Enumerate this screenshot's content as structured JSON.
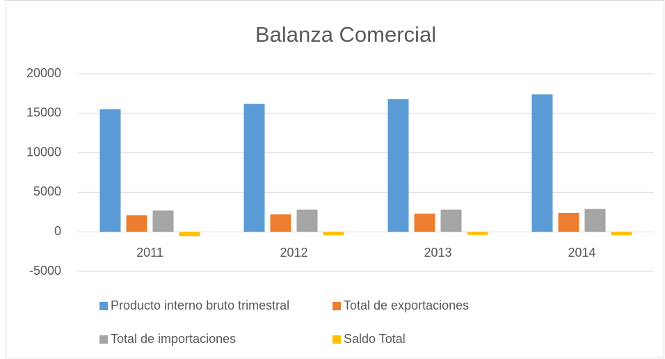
{
  "chart_data": {
    "type": "bar",
    "title": "Balanza Comercial",
    "categories": [
      "2011",
      "2012",
      "2013",
      "2014"
    ],
    "series": [
      {
        "name": "Producto interno bruto trimestral",
        "color": "#5b9bd5",
        "values": [
          15500,
          16200,
          16800,
          17400
        ]
      },
      {
        "name": "Total de exportaciones",
        "color": "#ed7d31",
        "values": [
          2100,
          2200,
          2300,
          2400
        ]
      },
      {
        "name": "Total de importaciones",
        "color": "#a5a5a5",
        "values": [
          2700,
          2800,
          2800,
          2900
        ]
      },
      {
        "name": "Saldo Total",
        "color": "#ffc000",
        "values": [
          -550,
          -450,
          -400,
          -450
        ]
      }
    ],
    "ylim": [
      -5000,
      20000
    ],
    "yticks": [
      -5000,
      0,
      5000,
      10000,
      15000,
      20000
    ],
    "grid": true,
    "legend": "bottom"
  }
}
